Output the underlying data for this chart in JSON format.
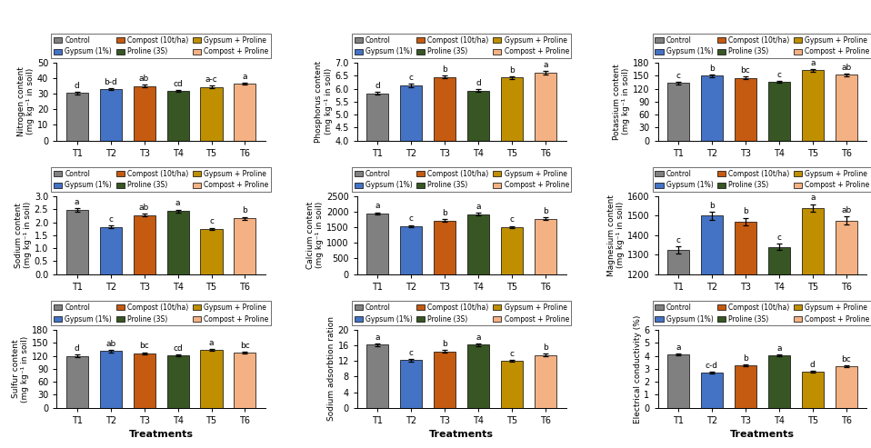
{
  "bar_colors": [
    "#808080",
    "#4472C4",
    "#C55A11",
    "#375623",
    "#BF8F00",
    "#F4B183"
  ],
  "legend_labels": [
    "Control",
    "Gypsum (1%)",
    "Compost (10t/ha)",
    "Proline (3S)",
    "Gypsum + Proline",
    "Compost + Proline"
  ],
  "treatments": [
    "T1",
    "T2",
    "T3",
    "T4",
    "T5",
    "T6"
  ],
  "subplots": [
    {
      "ylabel": "Nitrogen content\n(mg kg⁻¹ in soil)",
      "xlabel": "",
      "values": [
        30.5,
        33.0,
        35.0,
        32.0,
        34.5,
        36.5
      ],
      "errors": [
        0.8,
        0.8,
        0.7,
        0.5,
        0.7,
        0.8
      ],
      "ylim": [
        0,
        50
      ],
      "yticks": [
        0,
        10,
        20,
        30,
        40,
        50
      ],
      "letters": [
        "d",
        "b-d",
        "ab",
        "cd",
        "a-c",
        "a"
      ]
    },
    {
      "ylabel": "Phosphorus content\n(mg kg⁻¹ in soil)",
      "xlabel": "",
      "values": [
        5.82,
        6.12,
        6.45,
        5.92,
        6.43,
        6.62
      ],
      "errors": [
        0.05,
        0.08,
        0.06,
        0.05,
        0.05,
        0.07
      ],
      "ylim": [
        4.0,
        7.0
      ],
      "yticks": [
        4.0,
        4.5,
        5.0,
        5.5,
        6.0,
        6.5,
        7.0
      ],
      "letters": [
        "d",
        "c",
        "b",
        "d",
        "b",
        "a"
      ]
    },
    {
      "ylabel": "Potassium content\n(mg kg⁻¹ in soil)",
      "xlabel": "",
      "values": [
        133,
        150,
        145,
        135,
        163,
        152
      ],
      "errors": [
        2.5,
        3.0,
        2.8,
        2.0,
        3.0,
        3.5
      ],
      "ylim": [
        0,
        180
      ],
      "yticks": [
        0,
        30,
        60,
        90,
        120,
        150,
        180
      ],
      "letters": [
        "c",
        "b",
        "bc",
        "c",
        "a",
        "ab"
      ]
    },
    {
      "ylabel": "Sodium content\n(mg kg⁻¹ in soil)",
      "xlabel": "",
      "values": [
        2.47,
        1.82,
        2.28,
        2.43,
        1.75,
        2.15
      ],
      "errors": [
        0.06,
        0.05,
        0.05,
        0.06,
        0.04,
        0.06
      ],
      "ylim": [
        0.0,
        3.0
      ],
      "yticks": [
        0.0,
        0.5,
        1.0,
        1.5,
        2.0,
        2.5,
        3.0
      ],
      "letters": [
        "a",
        "c",
        "ab",
        "a",
        "c",
        "b"
      ]
    },
    {
      "ylabel": "Calcium content\n(mg kg⁻¹ in soil)",
      "xlabel": "",
      "values": [
        1950,
        1545,
        1720,
        1930,
        1520,
        1780
      ],
      "errors": [
        40,
        35,
        38,
        42,
        30,
        40
      ],
      "ylim": [
        0,
        2500
      ],
      "yticks": [
        0,
        500,
        1000,
        1500,
        2000,
        2500
      ],
      "letters": [
        "a",
        "c",
        "b",
        "a",
        "c",
        "b"
      ]
    },
    {
      "ylabel": "Magnesium content\n(mg kg⁻¹ in soil)",
      "xlabel": "",
      "values": [
        1325,
        1500,
        1470,
        1340,
        1540,
        1475
      ],
      "errors": [
        18,
        22,
        20,
        15,
        20,
        22
      ],
      "ylim": [
        1200,
        1600
      ],
      "yticks": [
        1200,
        1300,
        1400,
        1500,
        1600
      ],
      "letters": [
        "c",
        "b",
        "b",
        "c",
        "a",
        "ab"
      ]
    },
    {
      "ylabel": "Sulfur content\n(mg kg⁻¹ in soil)",
      "xlabel": "Treatments",
      "values": [
        120,
        131,
        126,
        121,
        134,
        128
      ],
      "errors": [
        2.5,
        2.8,
        2.5,
        2.0,
        2.8,
        2.5
      ],
      "ylim": [
        0,
        180
      ],
      "yticks": [
        0,
        30,
        60,
        90,
        120,
        150,
        180
      ],
      "letters": [
        "d",
        "ab",
        "bc",
        "cd",
        "a",
        "bc"
      ]
    },
    {
      "ylabel": "Sodium adsorbtion ration",
      "xlabel": "Treatments",
      "values": [
        16.2,
        12.2,
        14.5,
        16.2,
        12.0,
        13.5
      ],
      "errors": [
        0.35,
        0.28,
        0.32,
        0.4,
        0.25,
        0.35
      ],
      "ylim": [
        0,
        20
      ],
      "yticks": [
        0,
        4,
        8,
        12,
        16,
        20
      ],
      "letters": [
        "a",
        "c",
        "b",
        "a",
        "c",
        "b"
      ]
    },
    {
      "ylabel": "Electrical conductivity (%)",
      "xlabel": "Treatments",
      "values": [
        4.1,
        2.72,
        3.25,
        4.05,
        2.75,
        3.18
      ],
      "errors": [
        0.08,
        0.06,
        0.07,
        0.08,
        0.07,
        0.07
      ],
      "ylim": [
        0.0,
        6.0
      ],
      "yticks": [
        0.0,
        1.0,
        2.0,
        3.0,
        4.0,
        5.0,
        6.0
      ],
      "letters": [
        "a",
        "c-d",
        "b",
        "a",
        "d",
        "bc"
      ]
    }
  ],
  "figure_bgcolor": "#ffffff",
  "axes_bgcolor": "#ffffff"
}
